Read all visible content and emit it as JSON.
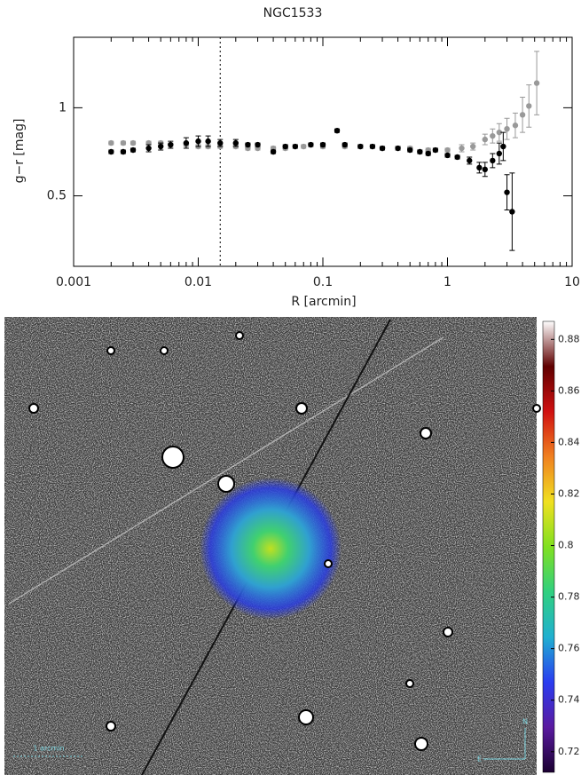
{
  "chart_data": {
    "type": "scatter",
    "title": "NGC1533",
    "xlabel": "R [arcmin]",
    "ylabel": "g−r [mag]",
    "xscale": "log",
    "xlim": [
      0.001,
      10
    ],
    "ylim": [
      0.1,
      1.4
    ],
    "xticks": [
      0.001,
      0.01,
      0.1,
      1,
      10
    ],
    "yticks": [
      0.5,
      1
    ],
    "vline": 0.015,
    "series": [
      {
        "color": "#999999",
        "x": [
          0.002,
          0.0025,
          0.003,
          0.004,
          0.005,
          0.006,
          0.008,
          0.01,
          0.012,
          0.015,
          0.02,
          0.025,
          0.03,
          0.04,
          0.05,
          0.07,
          0.1,
          0.15,
          0.2,
          0.3,
          0.5,
          0.7,
          1,
          1.3,
          1.6,
          2,
          2.3,
          2.6,
          3,
          3.5,
          4,
          4.5,
          5.2
        ],
        "values": [
          0.8,
          0.8,
          0.8,
          0.8,
          0.8,
          0.79,
          0.79,
          0.78,
          0.78,
          0.78,
          0.78,
          0.77,
          0.77,
          0.77,
          0.77,
          0.78,
          0.78,
          0.78,
          0.78,
          0.77,
          0.77,
          0.76,
          0.76,
          0.77,
          0.78,
          0.82,
          0.84,
          0.86,
          0.88,
          0.9,
          0.96,
          1.01,
          1.14
        ],
        "errors": [
          0.01,
          0.01,
          0.01,
          0.01,
          0.01,
          0.01,
          0.01,
          0.01,
          0.01,
          0.01,
          0.01,
          0.01,
          0.01,
          0.01,
          0.01,
          0.01,
          0.01,
          0.01,
          0.01,
          0.01,
          0.01,
          0.01,
          0.01,
          0.02,
          0.02,
          0.03,
          0.04,
          0.05,
          0.06,
          0.07,
          0.1,
          0.12,
          0.18
        ]
      },
      {
        "color": "#000000",
        "x": [
          0.002,
          0.0025,
          0.003,
          0.004,
          0.005,
          0.006,
          0.008,
          0.01,
          0.012,
          0.015,
          0.02,
          0.025,
          0.03,
          0.04,
          0.05,
          0.06,
          0.08,
          0.1,
          0.13,
          0.15,
          0.2,
          0.25,
          0.3,
          0.4,
          0.5,
          0.6,
          0.7,
          0.8,
          1,
          1.2,
          1.5,
          1.8,
          2,
          2.3,
          2.6,
          2.8,
          3,
          3.3
        ],
        "values": [
          0.75,
          0.75,
          0.76,
          0.77,
          0.78,
          0.79,
          0.8,
          0.81,
          0.81,
          0.8,
          0.8,
          0.79,
          0.79,
          0.75,
          0.78,
          0.78,
          0.79,
          0.79,
          0.87,
          0.79,
          0.78,
          0.78,
          0.77,
          0.77,
          0.76,
          0.75,
          0.74,
          0.76,
          0.73,
          0.72,
          0.7,
          0.66,
          0.65,
          0.7,
          0.74,
          0.78,
          0.52,
          0.41
        ],
        "errors": [
          0.01,
          0.01,
          0.01,
          0.02,
          0.02,
          0.02,
          0.03,
          0.03,
          0.03,
          0.02,
          0.02,
          0.01,
          0.01,
          0.01,
          0.01,
          0.01,
          0.01,
          0.01,
          0.01,
          0.01,
          0.01,
          0.01,
          0.01,
          0.01,
          0.01,
          0.01,
          0.01,
          0.01,
          0.01,
          0.01,
          0.02,
          0.03,
          0.04,
          0.04,
          0.06,
          0.08,
          0.1,
          0.22
        ]
      }
    ]
  },
  "image": {
    "scale_label": "1 arcmin",
    "east_label": "E",
    "north_label": "N",
    "colorbar": {
      "lim": [
        0.712,
        0.887
      ],
      "ticks": [
        0.72,
        0.74,
        0.76,
        0.78,
        0.8,
        0.82,
        0.84,
        0.86,
        0.88
      ],
      "colors": [
        "#1a0030",
        "#5a1aa0",
        "#2a3cf0",
        "#20b0d0",
        "#30d080",
        "#80e020",
        "#f0e020",
        "#f08020",
        "#d01010",
        "#600000",
        "#ffffff"
      ]
    }
  }
}
